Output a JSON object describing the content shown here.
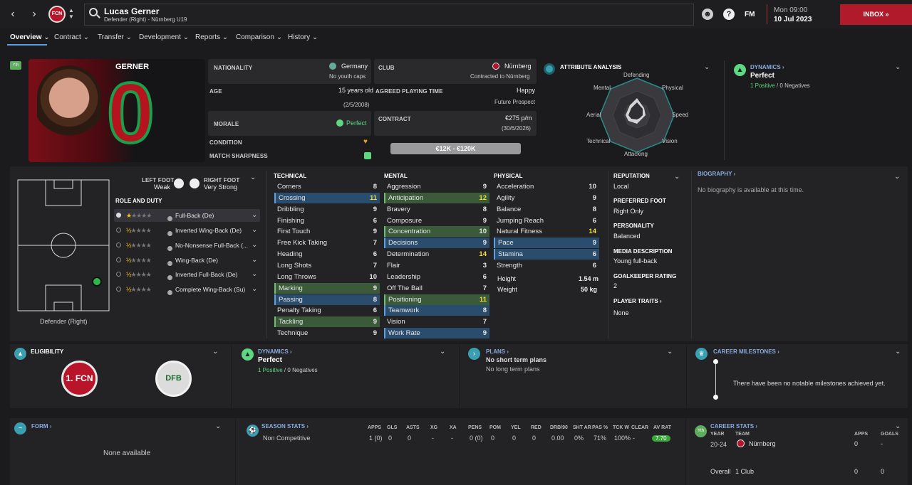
{
  "topbar": {
    "back": "‹",
    "forward": "›",
    "club_badge": "FCN",
    "player_name": "Lucas Gerner",
    "player_sub": "Defender (Right) - Nürnberg U19",
    "fm": "FM",
    "date_day": "Mon 09:00",
    "date": "10 Jul 2023",
    "inbox": "INBOX"
  },
  "tabs": [
    "Overview",
    "Contract",
    "Transfer",
    "Development",
    "Reports",
    "Comparison",
    "History"
  ],
  "profile": {
    "yth": "Yth",
    "surname": "GERNER",
    "shirt": "0"
  },
  "info": {
    "nationality_lbl": "NATIONALITY",
    "nationality": "Germany",
    "youth_caps": "No youth caps",
    "age_lbl": "AGE",
    "age": "15 years old",
    "dob": "(2/5/2008)",
    "morale_lbl": "MORALE",
    "morale": "Perfect",
    "condition_lbl": "CONDITION",
    "sharpness_lbl": "MATCH SHARPNESS",
    "club_lbl": "CLUB",
    "club": "Nürnberg",
    "contracted": "Contracted to Nürnberg",
    "apt_lbl": "AGREED PLAYING TIME",
    "apt": "Happy",
    "apt_sub": "Future Prospect",
    "contract_lbl": "CONTRACT",
    "wage": "€275 p/m",
    "expiry": "(30/6/2026)",
    "value": "€12K - €120K"
  },
  "analysis": {
    "title": "ATTRIBUTE ANALYSIS",
    "labels": [
      "Defending",
      "Physical",
      "Speed",
      "Vision",
      "Attacking",
      "Technical",
      "Aerial",
      "Mental"
    ]
  },
  "dynamics": {
    "title": "DYNAMICS",
    "status": "Perfect",
    "positives": "1 Positive",
    "sep": "/",
    "negatives": "0 Negatives"
  },
  "feet": {
    "left_lbl": "LEFT FOOT",
    "left": "Weak",
    "right_lbl": "RIGHT FOOT",
    "right": "Very Strong"
  },
  "roles_title": "ROLE AND DUTY",
  "roles": [
    "Full-Back (De)",
    "Inverted Wing-Back (De)",
    "No-Nonsense Full-Back (...",
    "Wing-Back (De)",
    "Inverted Full-Back (De)",
    "Complete Wing-Back (Su)"
  ],
  "position_label": "Defender (Right)",
  "technical": {
    "title": "TECHNICAL",
    "rows": [
      [
        "Corners",
        "8"
      ],
      [
        "Crossing",
        "11"
      ],
      [
        "Dribbling",
        "9"
      ],
      [
        "Finishing",
        "6"
      ],
      [
        "First Touch",
        "9"
      ],
      [
        "Free Kick Taking",
        "7"
      ],
      [
        "Heading",
        "6"
      ],
      [
        "Long Shots",
        "7"
      ],
      [
        "Long Throws",
        "10"
      ],
      [
        "Marking",
        "9"
      ],
      [
        "Passing",
        "8"
      ],
      [
        "Penalty Taking",
        "6"
      ],
      [
        "Tackling",
        "9"
      ],
      [
        "Technique",
        "9"
      ]
    ]
  },
  "mental": {
    "title": "MENTAL",
    "rows": [
      [
        "Aggression",
        "9"
      ],
      [
        "Anticipation",
        "12"
      ],
      [
        "Bravery",
        "8"
      ],
      [
        "Composure",
        "9"
      ],
      [
        "Concentration",
        "10"
      ],
      [
        "Decisions",
        "9"
      ],
      [
        "Determination",
        "14"
      ],
      [
        "Flair",
        "3"
      ],
      [
        "Leadership",
        "6"
      ],
      [
        "Off The Ball",
        "7"
      ],
      [
        "Positioning",
        "11"
      ],
      [
        "Teamwork",
        "8"
      ],
      [
        "Vision",
        "7"
      ],
      [
        "Work Rate",
        "9"
      ]
    ]
  },
  "physical": {
    "title": "PHYSICAL",
    "rows": [
      [
        "Acceleration",
        "10"
      ],
      [
        "Agility",
        "9"
      ],
      [
        "Balance",
        "8"
      ],
      [
        "Jumping Reach",
        "6"
      ],
      [
        "Natural Fitness",
        "14"
      ],
      [
        "Pace",
        "9"
      ],
      [
        "Stamina",
        "6"
      ],
      [
        "Strength",
        "6"
      ]
    ],
    "height_lbl": "Height",
    "height": "1.54 m",
    "weight_lbl": "Weight",
    "weight": "50 kg"
  },
  "side": {
    "rep_lbl": "REPUTATION",
    "rep": "Local",
    "foot_lbl": "PREFERRED FOOT",
    "foot": "Right Only",
    "pers_lbl": "PERSONALITY",
    "pers": "Balanced",
    "media_lbl": "MEDIA DESCRIPTION",
    "media": "Young full-back",
    "gk_lbl": "GOALKEEPER RATING",
    "gk": "2",
    "traits_lbl": "PLAYER TRAITS",
    "traits": "None"
  },
  "bio": {
    "title": "BIOGRAPHY",
    "text": "No biography is available at this time."
  },
  "eligibility": {
    "title": "ELIGIBILITY",
    "club_badge": "1. FCN",
    "nat_badge": "DFB"
  },
  "dynamics2": {
    "title": "DYNAMICS",
    "status": "Perfect",
    "positives": "1 Positive",
    "sep": "/",
    "negatives": "0 Negatives"
  },
  "plans": {
    "title": "PLANS",
    "short": "No short term plans",
    "long": "No long term plans"
  },
  "milestones": {
    "title": "CAREER MILESTONES",
    "text": "There have been no notable milestones achieved yet."
  },
  "form": {
    "title": "FORM",
    "text": "None available"
  },
  "season": {
    "title": "SEASON STATS",
    "headers": [
      "APPS",
      "GLS",
      "ASTS",
      "XG",
      "XA",
      "PENS",
      "POM",
      "YEL",
      "RED",
      "DRB/90",
      "SHT AR",
      "PAS %",
      "TCK W",
      "CLEAR",
      "AV RAT"
    ],
    "row_label": "Non Competitive",
    "values": [
      "1 (0)",
      "0",
      "0",
      "-",
      "-",
      "0 (0)",
      "0",
      "0",
      "0",
      "0.00",
      "0%",
      "71%",
      "100%",
      "-",
      "7.70"
    ]
  },
  "career": {
    "title": "CAREER STATS",
    "year_h": "YEAR",
    "team_h": "TEAM",
    "apps_h": "APPS",
    "goals_h": "GOALS",
    "year": "20-24",
    "team": "Nürnberg",
    "apps": "0",
    "goals": "-",
    "overall": "Overall",
    "clubs": "1 Club",
    "tot_apps": "0",
    "tot_goals": "0"
  }
}
